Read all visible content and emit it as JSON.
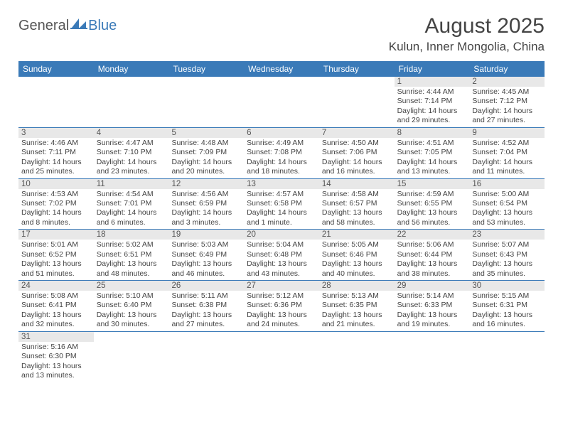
{
  "colors": {
    "header_bg": "#3a7ab8",
    "header_fg": "#ffffff",
    "daybar_bg": "#e8e8e8",
    "row_divider": "#3a7ab8",
    "text": "#444444",
    "logo_gray": "#555555",
    "logo_blue": "#3a7ab8"
  },
  "logo": {
    "part1": "General",
    "part2": "Blue"
  },
  "title": "August 2025",
  "location": "Kulun, Inner Mongolia, China",
  "day_headers": [
    "Sunday",
    "Monday",
    "Tuesday",
    "Wednesday",
    "Thursday",
    "Friday",
    "Saturday"
  ],
  "weeks": [
    [
      null,
      null,
      null,
      null,
      null,
      {
        "n": "1",
        "sr": "Sunrise: 4:44 AM",
        "ss": "Sunset: 7:14 PM",
        "dl1": "Daylight: 14 hours",
        "dl2": "and 29 minutes."
      },
      {
        "n": "2",
        "sr": "Sunrise: 4:45 AM",
        "ss": "Sunset: 7:12 PM",
        "dl1": "Daylight: 14 hours",
        "dl2": "and 27 minutes."
      }
    ],
    [
      {
        "n": "3",
        "sr": "Sunrise: 4:46 AM",
        "ss": "Sunset: 7:11 PM",
        "dl1": "Daylight: 14 hours",
        "dl2": "and 25 minutes."
      },
      {
        "n": "4",
        "sr": "Sunrise: 4:47 AM",
        "ss": "Sunset: 7:10 PM",
        "dl1": "Daylight: 14 hours",
        "dl2": "and 23 minutes."
      },
      {
        "n": "5",
        "sr": "Sunrise: 4:48 AM",
        "ss": "Sunset: 7:09 PM",
        "dl1": "Daylight: 14 hours",
        "dl2": "and 20 minutes."
      },
      {
        "n": "6",
        "sr": "Sunrise: 4:49 AM",
        "ss": "Sunset: 7:08 PM",
        "dl1": "Daylight: 14 hours",
        "dl2": "and 18 minutes."
      },
      {
        "n": "7",
        "sr": "Sunrise: 4:50 AM",
        "ss": "Sunset: 7:06 PM",
        "dl1": "Daylight: 14 hours",
        "dl2": "and 16 minutes."
      },
      {
        "n": "8",
        "sr": "Sunrise: 4:51 AM",
        "ss": "Sunset: 7:05 PM",
        "dl1": "Daylight: 14 hours",
        "dl2": "and 13 minutes."
      },
      {
        "n": "9",
        "sr": "Sunrise: 4:52 AM",
        "ss": "Sunset: 7:04 PM",
        "dl1": "Daylight: 14 hours",
        "dl2": "and 11 minutes."
      }
    ],
    [
      {
        "n": "10",
        "sr": "Sunrise: 4:53 AM",
        "ss": "Sunset: 7:02 PM",
        "dl1": "Daylight: 14 hours",
        "dl2": "and 8 minutes."
      },
      {
        "n": "11",
        "sr": "Sunrise: 4:54 AM",
        "ss": "Sunset: 7:01 PM",
        "dl1": "Daylight: 14 hours",
        "dl2": "and 6 minutes."
      },
      {
        "n": "12",
        "sr": "Sunrise: 4:56 AM",
        "ss": "Sunset: 6:59 PM",
        "dl1": "Daylight: 14 hours",
        "dl2": "and 3 minutes."
      },
      {
        "n": "13",
        "sr": "Sunrise: 4:57 AM",
        "ss": "Sunset: 6:58 PM",
        "dl1": "Daylight: 14 hours",
        "dl2": "and 1 minute."
      },
      {
        "n": "14",
        "sr": "Sunrise: 4:58 AM",
        "ss": "Sunset: 6:57 PM",
        "dl1": "Daylight: 13 hours",
        "dl2": "and 58 minutes."
      },
      {
        "n": "15",
        "sr": "Sunrise: 4:59 AM",
        "ss": "Sunset: 6:55 PM",
        "dl1": "Daylight: 13 hours",
        "dl2": "and 56 minutes."
      },
      {
        "n": "16",
        "sr": "Sunrise: 5:00 AM",
        "ss": "Sunset: 6:54 PM",
        "dl1": "Daylight: 13 hours",
        "dl2": "and 53 minutes."
      }
    ],
    [
      {
        "n": "17",
        "sr": "Sunrise: 5:01 AM",
        "ss": "Sunset: 6:52 PM",
        "dl1": "Daylight: 13 hours",
        "dl2": "and 51 minutes."
      },
      {
        "n": "18",
        "sr": "Sunrise: 5:02 AM",
        "ss": "Sunset: 6:51 PM",
        "dl1": "Daylight: 13 hours",
        "dl2": "and 48 minutes."
      },
      {
        "n": "19",
        "sr": "Sunrise: 5:03 AM",
        "ss": "Sunset: 6:49 PM",
        "dl1": "Daylight: 13 hours",
        "dl2": "and 46 minutes."
      },
      {
        "n": "20",
        "sr": "Sunrise: 5:04 AM",
        "ss": "Sunset: 6:48 PM",
        "dl1": "Daylight: 13 hours",
        "dl2": "and 43 minutes."
      },
      {
        "n": "21",
        "sr": "Sunrise: 5:05 AM",
        "ss": "Sunset: 6:46 PM",
        "dl1": "Daylight: 13 hours",
        "dl2": "and 40 minutes."
      },
      {
        "n": "22",
        "sr": "Sunrise: 5:06 AM",
        "ss": "Sunset: 6:44 PM",
        "dl1": "Daylight: 13 hours",
        "dl2": "and 38 minutes."
      },
      {
        "n": "23",
        "sr": "Sunrise: 5:07 AM",
        "ss": "Sunset: 6:43 PM",
        "dl1": "Daylight: 13 hours",
        "dl2": "and 35 minutes."
      }
    ],
    [
      {
        "n": "24",
        "sr": "Sunrise: 5:08 AM",
        "ss": "Sunset: 6:41 PM",
        "dl1": "Daylight: 13 hours",
        "dl2": "and 32 minutes."
      },
      {
        "n": "25",
        "sr": "Sunrise: 5:10 AM",
        "ss": "Sunset: 6:40 PM",
        "dl1": "Daylight: 13 hours",
        "dl2": "and 30 minutes."
      },
      {
        "n": "26",
        "sr": "Sunrise: 5:11 AM",
        "ss": "Sunset: 6:38 PM",
        "dl1": "Daylight: 13 hours",
        "dl2": "and 27 minutes."
      },
      {
        "n": "27",
        "sr": "Sunrise: 5:12 AM",
        "ss": "Sunset: 6:36 PM",
        "dl1": "Daylight: 13 hours",
        "dl2": "and 24 minutes."
      },
      {
        "n": "28",
        "sr": "Sunrise: 5:13 AM",
        "ss": "Sunset: 6:35 PM",
        "dl1": "Daylight: 13 hours",
        "dl2": "and 21 minutes."
      },
      {
        "n": "29",
        "sr": "Sunrise: 5:14 AM",
        "ss": "Sunset: 6:33 PM",
        "dl1": "Daylight: 13 hours",
        "dl2": "and 19 minutes."
      },
      {
        "n": "30",
        "sr": "Sunrise: 5:15 AM",
        "ss": "Sunset: 6:31 PM",
        "dl1": "Daylight: 13 hours",
        "dl2": "and 16 minutes."
      }
    ],
    [
      {
        "n": "31",
        "sr": "Sunrise: 5:16 AM",
        "ss": "Sunset: 6:30 PM",
        "dl1": "Daylight: 13 hours",
        "dl2": "and 13 minutes."
      },
      null,
      null,
      null,
      null,
      null,
      null
    ]
  ]
}
